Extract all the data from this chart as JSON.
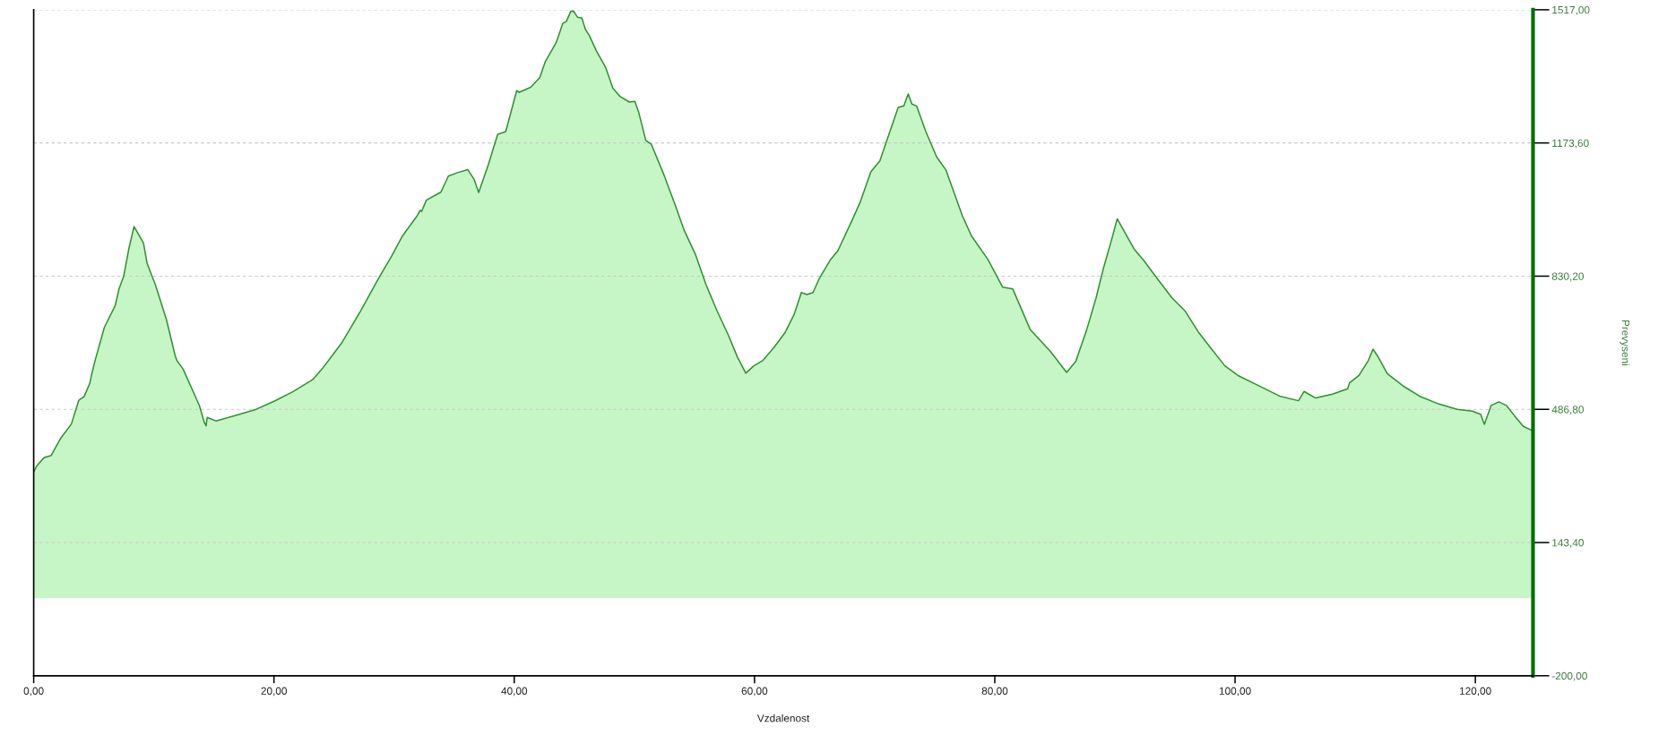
{
  "chart_data": {
    "type": "area",
    "xlabel": "Vzdalenost",
    "ylabel": "Prevyseni",
    "color": "#c6f6c6",
    "grid": "y",
    "xlim": [
      0,
      124.8
    ],
    "ylim": [
      -200,
      1517
    ],
    "xticks": [
      {
        "value": 0,
        "label": "0,00"
      },
      {
        "value": 20,
        "label": "20,00"
      },
      {
        "value": 40,
        "label": "40,00"
      },
      {
        "value": 60,
        "label": "60,00"
      },
      {
        "value": 80,
        "label": "80,00"
      },
      {
        "value": 100,
        "label": "100,00"
      },
      {
        "value": 120,
        "label": "120,00"
      }
    ],
    "yticks": [
      {
        "value": -200,
        "label": "-200,00"
      },
      {
        "value": 143.4,
        "label": "143,40"
      },
      {
        "value": 486.8,
        "label": "486,80"
      },
      {
        "value": 830.2,
        "label": "830,20"
      },
      {
        "value": 1173.6,
        "label": "1173,60"
      },
      {
        "value": 1517,
        "label": "1517,00"
      }
    ],
    "x": [
      0,
      0.24,
      0.85,
      1.46,
      2.22,
      3.14,
      3.75,
      4.2,
      4.66,
      4.81,
      5.12,
      5.88,
      6.79,
      7.1,
      7.49,
      7.92,
      8.35,
      8.71,
      9.14,
      9.44,
      10.14,
      11.06,
      11.76,
      11.91,
      12.43,
      13.8,
      14.19,
      14.35,
      14.44,
      15.17,
      16.69,
      18.52,
      20.04,
      21.56,
      23.24,
      23.55,
      24.0,
      24.76,
      25.68,
      27.2,
      28.72,
      29.79,
      30.7,
      31.92,
      32.17,
      32.29,
      32.68,
      33.9,
      34.51,
      35.27,
      36.13,
      36.64,
      37.04,
      37.86,
      38.62,
      39.29,
      40.21,
      40.39,
      41.36,
      42.12,
      42.58,
      43.49,
      44.04,
      44.34,
      44.71,
      44.95,
      45.26,
      45.62,
      45.93,
      46.23,
      46.84,
      47.6,
      48.21,
      48.82,
      49.58,
      50.04,
      50.34,
      50.95,
      51.41,
      52.48,
      53.39,
      54.15,
      55.07,
      55.98,
      56.89,
      57.81,
      58.57,
      59.27,
      59.94,
      60.7,
      61.61,
      62.53,
      63.29,
      63.9,
      64.36,
      64.87,
      65.42,
      66.33,
      66.94,
      68.16,
      68.77,
      69.68,
      70.44,
      70.9,
      71.96,
      72.43,
      72.79,
      73.1,
      73.49,
      74.26,
      75.17,
      75.93,
      77.3,
      78.06,
      79.43,
      80.65,
      81.5,
      82.94,
      84.61,
      85.98,
      86.74,
      87.66,
      88.42,
      89.03,
      89.73,
      90.19,
      91.6,
      92.39,
      93.33,
      94.75,
      95.85,
      96.95,
      98.05,
      99.15,
      100.25,
      101.82,
      103.71,
      105.28,
      105.75,
      106.7,
      108.11,
      109.37,
      109.53,
      110.31,
      111.1,
      111.48,
      111.89,
      112.67,
      114.09,
      115.35,
      116.92,
      118.49,
      119.75,
      120.44,
      120.75,
      121.32,
      121.95,
      122.58,
      123.21,
      124.0,
      124.8
    ],
    "values": [
      326,
      340,
      362,
      368,
      411,
      449,
      510,
      520,
      553,
      575,
      614,
      698,
      755,
      797,
      830,
      901,
      958,
      939,
      915,
      863,
      807,
      717,
      627,
      613,
      591,
      496,
      454,
      444,
      466,
      457,
      470,
      487,
      508,
      532,
      564,
      575,
      591,
      622,
      660,
      740,
      825,
      882,
      934,
      986,
      1000,
      997,
      1026,
      1047,
      1088,
      1097,
      1105,
      1081,
      1046,
      1119,
      1196,
      1203,
      1309,
      1304,
      1317,
      1342,
      1383,
      1432,
      1482,
      1487,
      1513,
      1513,
      1498,
      1496,
      1466,
      1452,
      1411,
      1369,
      1315,
      1293,
      1279,
      1281,
      1255,
      1180,
      1170,
      1090,
      1014,
      948,
      887,
      807,
      740,
      679,
      622,
      580,
      599,
      613,
      646,
      684,
      731,
      788,
      783,
      788,
      826,
      873,
      896,
      977,
      1019,
      1099,
      1128,
      1170,
      1265,
      1269,
      1300,
      1274,
      1269,
      1203,
      1137,
      1104,
      986,
      934,
      873,
      802,
      797,
      693,
      637,
      582,
      610,
      693,
      773,
      849,
      925,
      978,
      900,
      871,
      832,
      774,
      740,
      686,
      642,
      599,
      574,
      550,
      521,
      509,
      533,
      516,
      526,
      540,
      555,
      574,
      613,
      642,
      623,
      579,
      545,
      521,
      501,
      487,
      482,
      474,
      448,
      497,
      506,
      497,
      472,
      443,
      431
    ]
  }
}
